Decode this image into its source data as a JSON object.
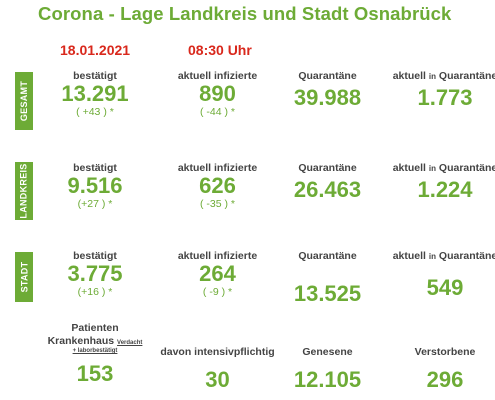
{
  "header": {
    "title": "Corona - Lage Landkreis und Stadt Osnabrück",
    "date": "18.01.2021",
    "time": "08:30 Uhr"
  },
  "labels": {
    "confirmed": "bestätigt",
    "active": "aktuell infizierte",
    "quarantine": "Quarantäne",
    "current_quarantine_prefix": "aktuell",
    "current_quarantine_in": "in",
    "current_quarantine_suffix": "Quarantäne"
  },
  "sections": [
    {
      "name": "GESAMT",
      "confirmed": "13.291",
      "confirmed_delta": "( +43 ) *",
      "active": "890",
      "active_delta": "( -44 ) *",
      "quarantine": "39.988",
      "current_quarantine": "1.773"
    },
    {
      "name": "LANDKREIS",
      "confirmed": "9.516",
      "confirmed_delta": "(+27 ) *",
      "active": "626",
      "active_delta": "( -35 ) *",
      "quarantine": "26.463",
      "current_quarantine": "1.224"
    },
    {
      "name": "STADT",
      "confirmed": "3.775",
      "confirmed_delta": "(+16 ) *",
      "active": "264",
      "active_delta": "( -9 ) *",
      "quarantine": "13.525",
      "current_quarantine": "549"
    }
  ],
  "bottom": {
    "patients_label_1": "Patienten",
    "patients_label_2": "Krankenhaus",
    "patients_suspected": "Verdacht",
    "patients_confirmed_note": "+ laborbestätigt",
    "patients_value": "153",
    "icu_label": "davon intensivpflichtig",
    "icu_value": "30",
    "recovered_label": "Genesene",
    "recovered_value": "12.105",
    "deaths_label": "Verstorbene",
    "deaths_value": "296"
  },
  "colors": {
    "accent_green": "#6dab36",
    "date_red": "#d9281c"
  }
}
